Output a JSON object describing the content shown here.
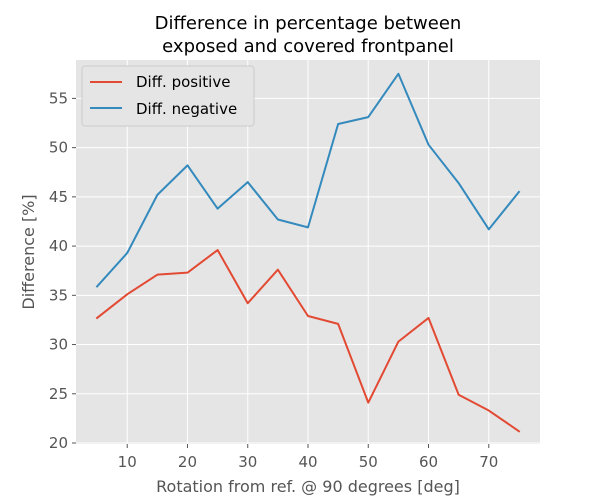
{
  "chart_data": {
    "type": "line",
    "title_lines": [
      "Difference in percentage between",
      "exposed and covered frontpanel"
    ],
    "xlabel": "Rotation from ref. @ 90 degrees [deg]",
    "ylabel": "Difference [%]",
    "x": [
      5,
      10,
      15,
      20,
      25,
      30,
      35,
      40,
      45,
      50,
      55,
      60,
      65,
      70,
      75
    ],
    "xlim": [
      1.5,
      78.5
    ],
    "ylim": [
      19.9,
      58.9
    ],
    "xticks": [
      10,
      20,
      30,
      40,
      50,
      60,
      70
    ],
    "yticks": [
      20,
      25,
      30,
      35,
      40,
      45,
      50,
      55
    ],
    "grid": true,
    "legend_position": "top-left",
    "series": [
      {
        "name": "Diff. positive",
        "color": "#E24A33",
        "values": [
          32.7,
          35.1,
          37.1,
          37.3,
          39.6,
          34.2,
          37.6,
          32.9,
          32.1,
          24.1,
          30.3,
          32.7,
          24.9,
          23.3,
          21.2
        ]
      },
      {
        "name": "Diff. negative",
        "color": "#348ABD",
        "values": [
          35.9,
          39.3,
          45.2,
          48.2,
          43.8,
          46.5,
          42.7,
          41.9,
          52.4,
          53.1,
          57.5,
          50.3,
          46.4,
          41.7,
          45.5
        ]
      }
    ]
  }
}
